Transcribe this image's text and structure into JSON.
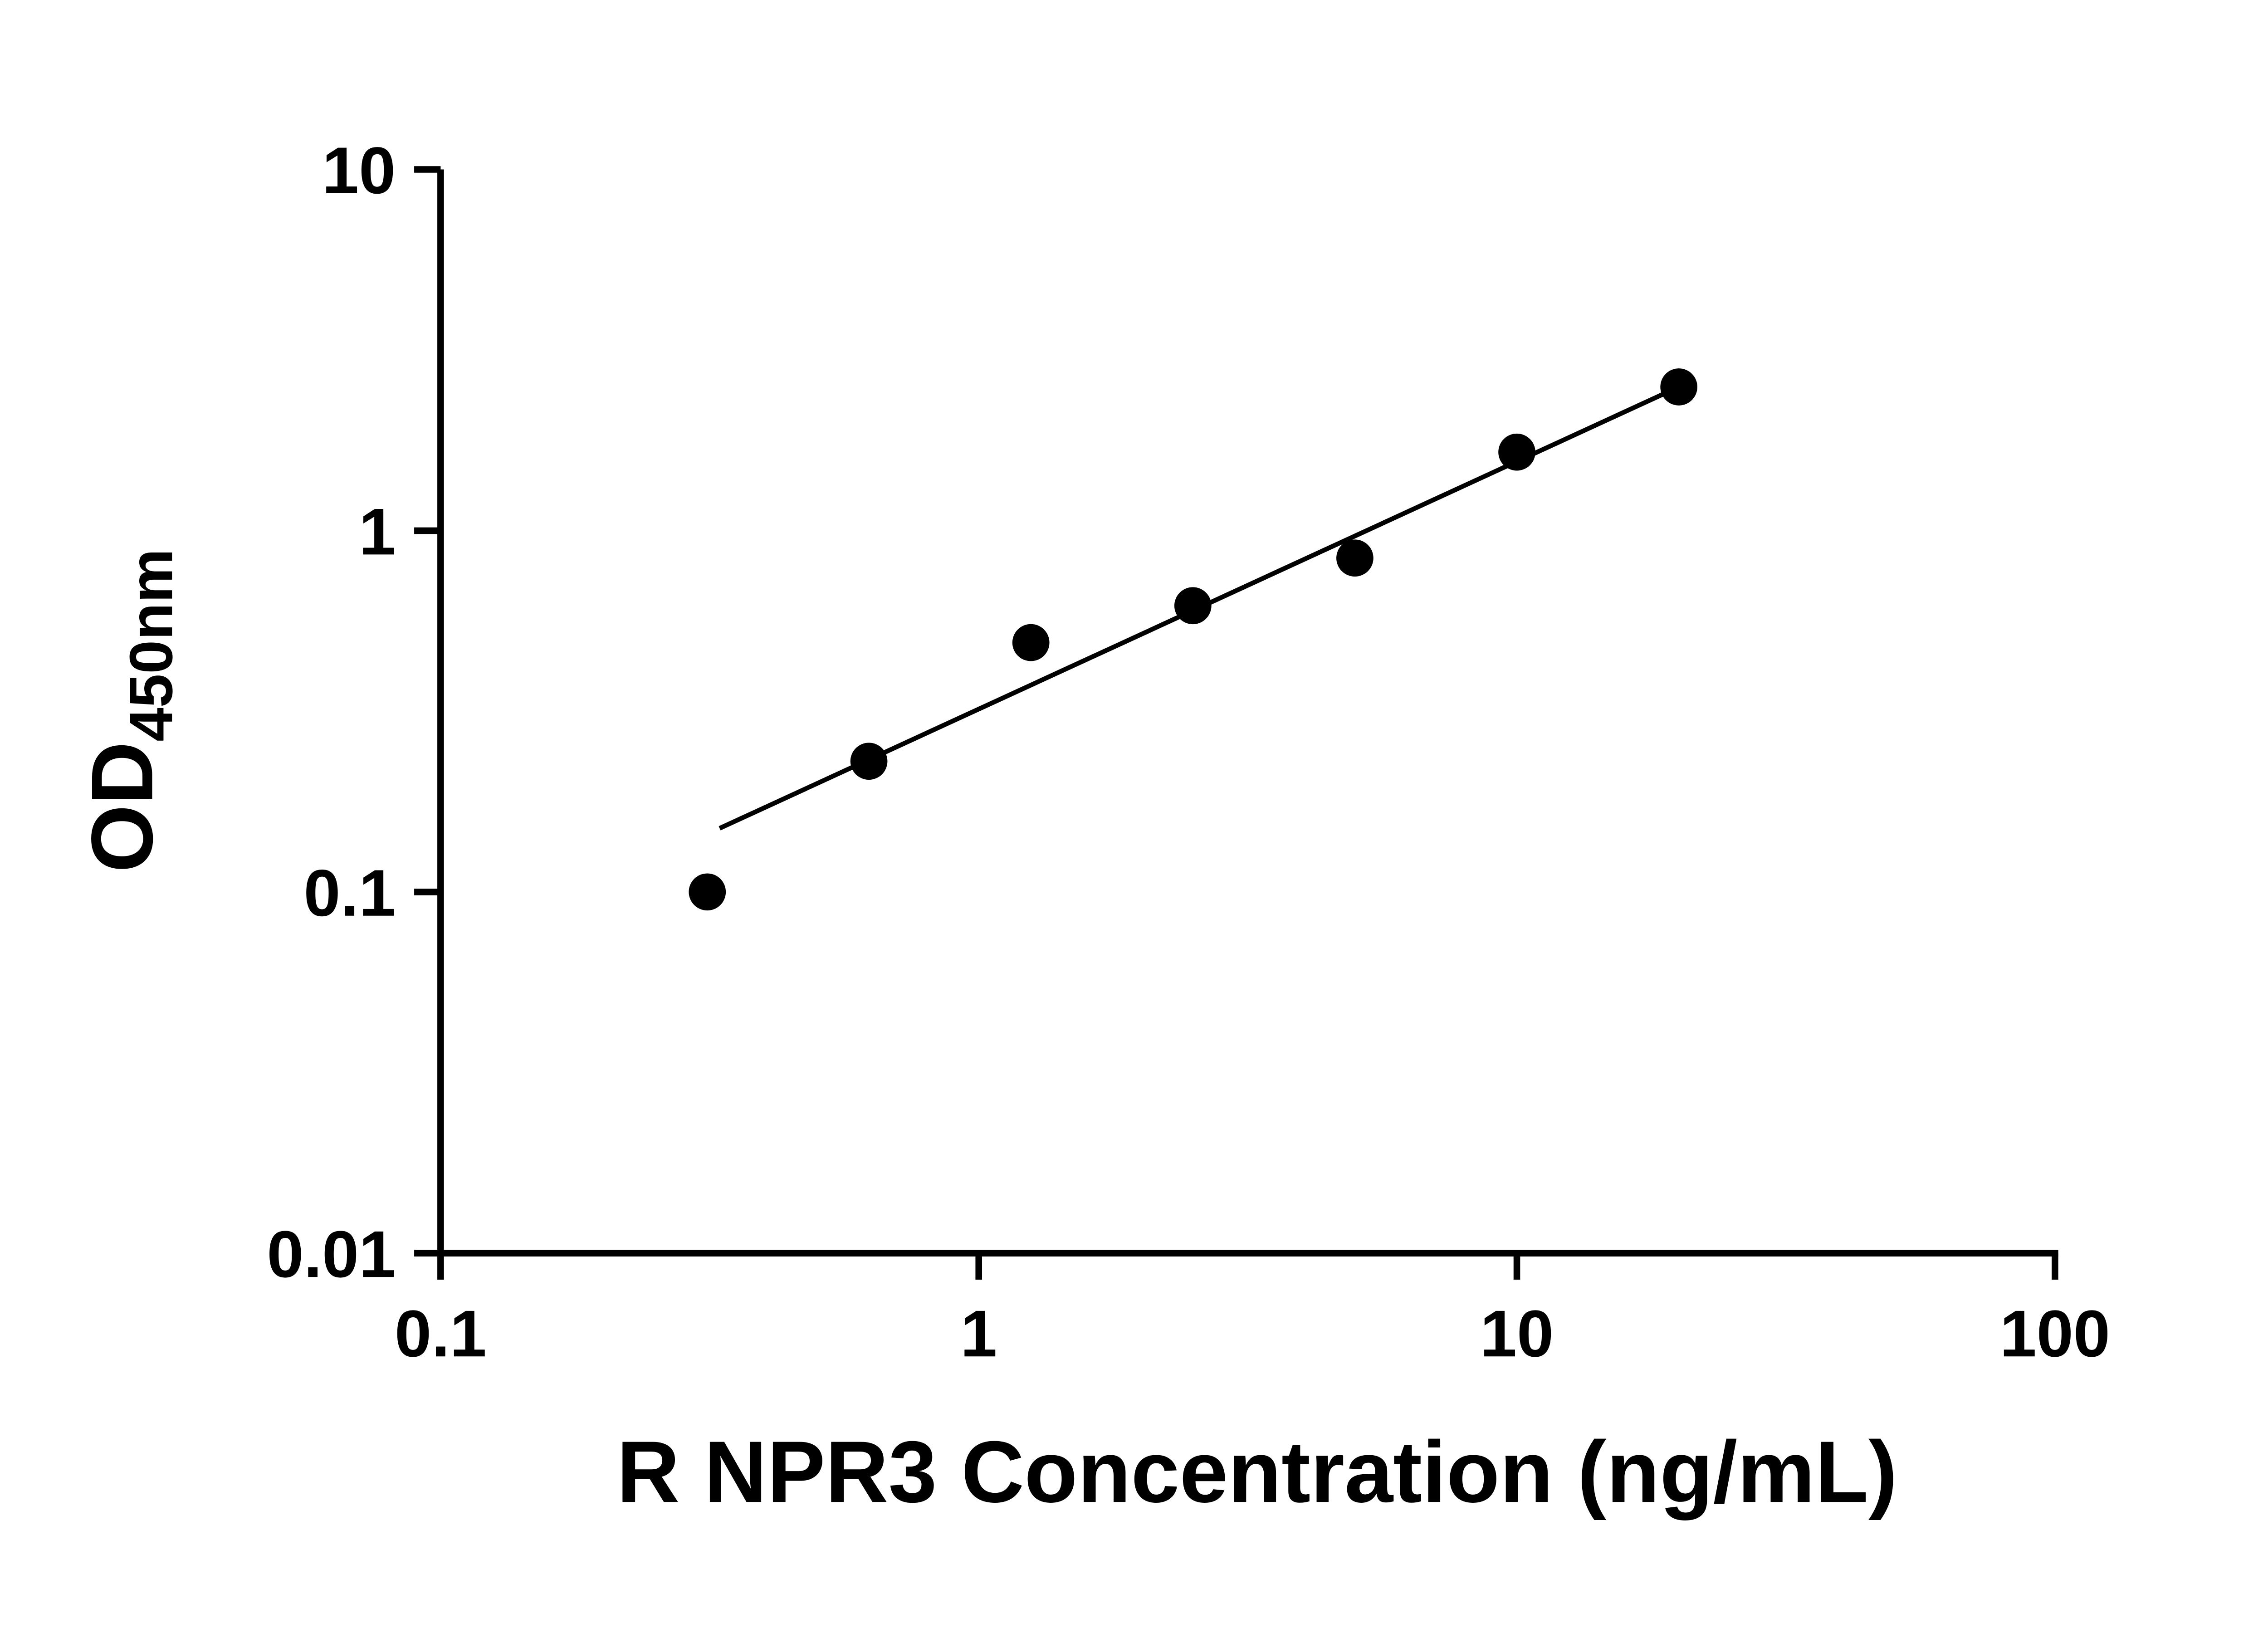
{
  "chart": {
    "background": "#ffffff"
  },
  "chart_data": {
    "type": "scatter",
    "title": "",
    "xlabel": "R NPR3 Concentration (ng/mL)",
    "ylabel_main": "OD",
    "ylabel_sub": "450nm",
    "x_scale": "log",
    "y_scale": "log",
    "xlim": [
      0.1,
      100
    ],
    "ylim": [
      0.01,
      10
    ],
    "grid": false,
    "x_ticks": [
      {
        "value": 0.1,
        "label": "0.1"
      },
      {
        "value": 1,
        "label": "1"
      },
      {
        "value": 10,
        "label": "10"
      },
      {
        "value": 100,
        "label": "100"
      }
    ],
    "y_ticks": [
      {
        "value": 0.01,
        "label": "0.01"
      },
      {
        "value": 0.1,
        "label": "0.1"
      },
      {
        "value": 1,
        "label": "1"
      },
      {
        "value": 10,
        "label": "10"
      }
    ],
    "points": [
      {
        "x": 0.313,
        "y": 0.1
      },
      {
        "x": 0.625,
        "y": 0.23
      },
      {
        "x": 1.25,
        "y": 0.49
      },
      {
        "x": 2.5,
        "y": 0.62
      },
      {
        "x": 5,
        "y": 0.84
      },
      {
        "x": 10,
        "y": 1.65
      },
      {
        "x": 20,
        "y": 2.5
      }
    ],
    "trendline": {
      "x1": 0.33,
      "y1": 0.15,
      "x2": 20,
      "y2": 2.5
    },
    "axis_color": "#000000",
    "marker_color": "#000000",
    "line_color": "#000000"
  }
}
